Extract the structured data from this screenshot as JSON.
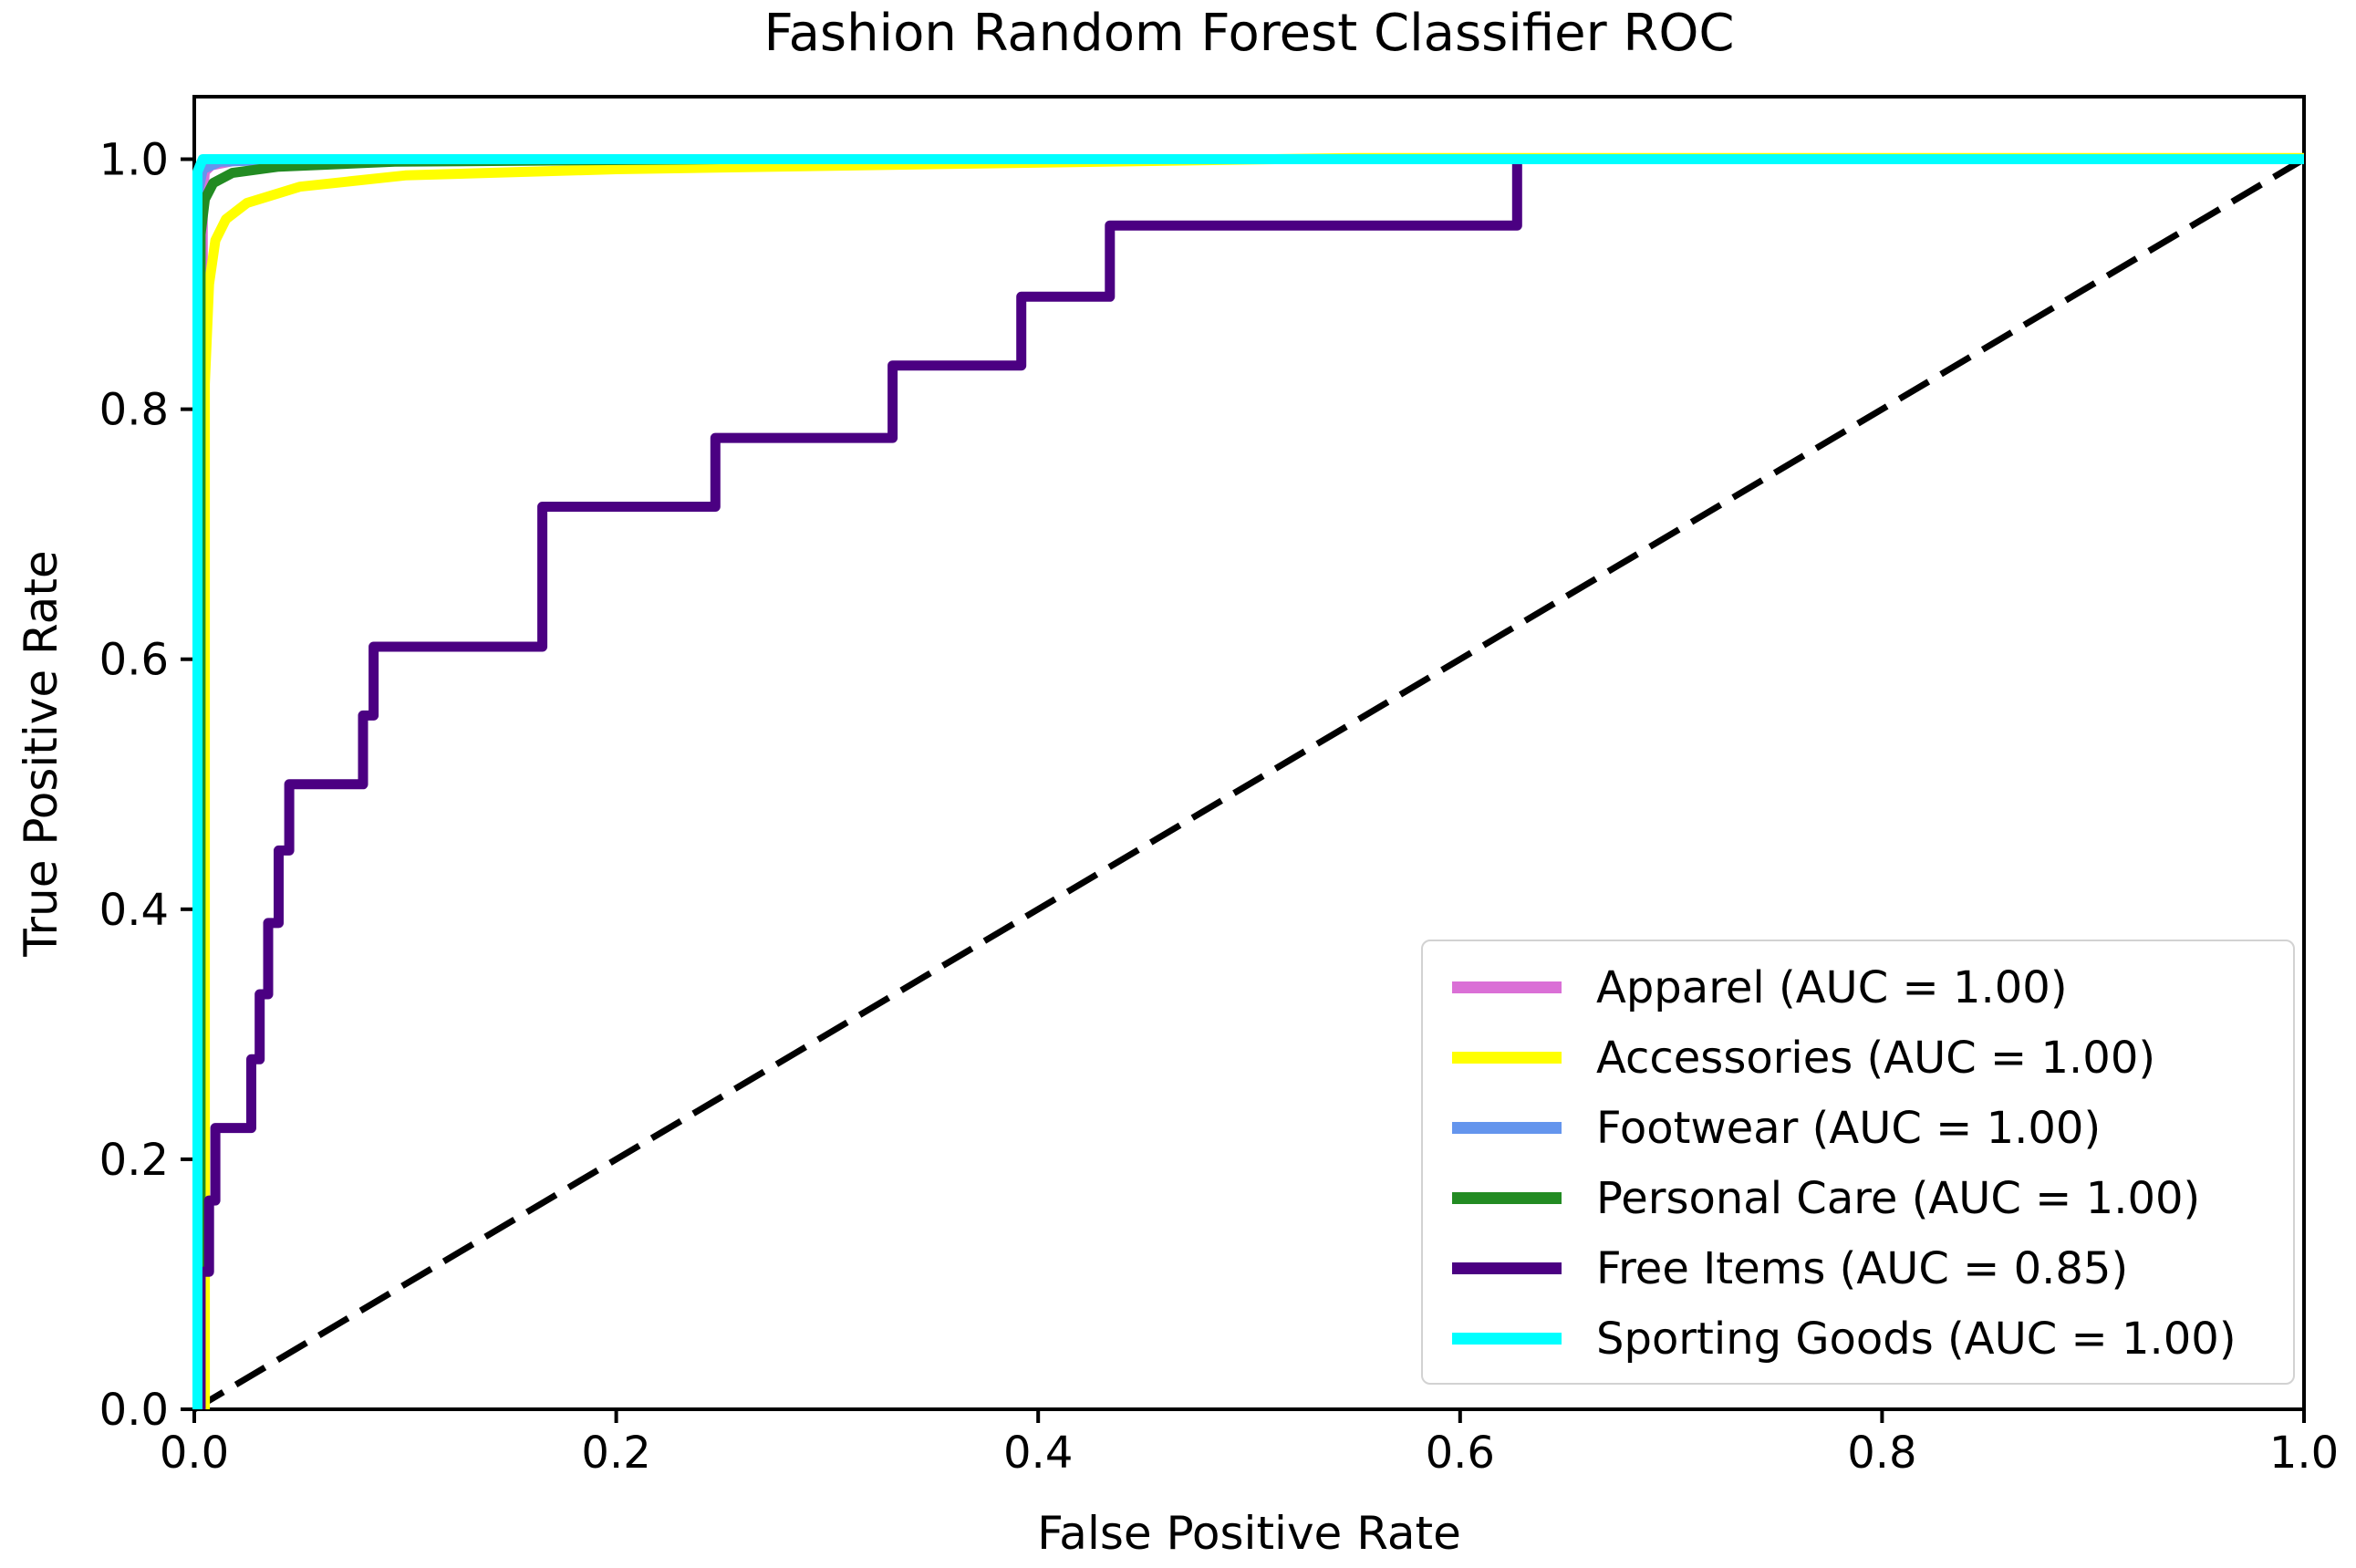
{
  "chart_data": {
    "type": "line",
    "title": "Fashion Random Forest Classifier ROC",
    "xlabel": "False Positive Rate",
    "ylabel": "True Positive Rate",
    "xlim": [
      0.0,
      1.0
    ],
    "ylim": [
      0.0,
      1.05
    ],
    "grid": false,
    "legend_position": "lower right",
    "x_tick_values": [
      0.0,
      0.2,
      0.4,
      0.6,
      0.8,
      1.0
    ],
    "x_tick_labels": [
      "0.0",
      "0.2",
      "0.4",
      "0.6",
      "0.8",
      "1.0"
    ],
    "y_tick_values": [
      0.0,
      0.2,
      0.4,
      0.6,
      0.8,
      1.0
    ],
    "y_tick_labels": [
      "0.0",
      "0.2",
      "0.4",
      "0.6",
      "0.8",
      "1.0"
    ],
    "chance_line": {
      "name": "chance-diagonal",
      "style": "dashed",
      "color": "#000000",
      "points": [
        [
          0.0,
          0.0
        ],
        [
          1.0,
          1.0
        ]
      ]
    },
    "series": [
      {
        "name": "Apparel",
        "auc": "1.00",
        "label": "Apparel (AUC = 1.00)",
        "color": "#DA70D6",
        "points": [
          [
            0.004,
            0.0
          ],
          [
            0.004,
            0.97
          ],
          [
            0.005,
            0.99
          ],
          [
            0.008,
            0.995
          ],
          [
            0.02,
            0.999
          ],
          [
            0.05,
            1.0
          ],
          [
            1.0,
            1.0
          ]
        ]
      },
      {
        "name": "Accessories",
        "auc": "1.00",
        "label": "Accessories (AUC = 1.00)",
        "color": "#FFFF00",
        "points": [
          [
            0.005,
            0.0
          ],
          [
            0.005,
            0.82
          ],
          [
            0.007,
            0.9
          ],
          [
            0.01,
            0.935
          ],
          [
            0.015,
            0.952
          ],
          [
            0.025,
            0.965
          ],
          [
            0.05,
            0.978
          ],
          [
            0.1,
            0.987
          ],
          [
            0.2,
            0.992
          ],
          [
            0.35,
            0.996
          ],
          [
            0.55,
            1.001
          ],
          [
            1.0,
            1.001
          ]
        ]
      },
      {
        "name": "Footwear",
        "auc": "1.00",
        "label": "Footwear (AUC = 1.00)",
        "color": "#6495ED",
        "points": [
          [
            0.002,
            0.0
          ],
          [
            0.002,
            0.975
          ],
          [
            0.004,
            0.992
          ],
          [
            0.012,
            0.998
          ],
          [
            0.05,
            1.0
          ],
          [
            1.0,
            1.0
          ]
        ]
      },
      {
        "name": "Personal Care",
        "auc": "1.00",
        "label": "Personal Care (AUC = 1.00)",
        "color": "#228B22",
        "points": [
          [
            0.003,
            0.0
          ],
          [
            0.003,
            0.94
          ],
          [
            0.005,
            0.968
          ],
          [
            0.009,
            0.981
          ],
          [
            0.018,
            0.989
          ],
          [
            0.04,
            0.994
          ],
          [
            0.095,
            0.998
          ],
          [
            0.25,
            1.0
          ],
          [
            1.0,
            1.0
          ]
        ]
      },
      {
        "name": "Free Items",
        "auc": "0.85",
        "label": "Free Items (AUC = 0.85)",
        "color": "#4B0082",
        "points": [
          [
            0.003,
            0.0
          ],
          [
            0.003,
            0.11
          ],
          [
            0.007,
            0.11
          ],
          [
            0.007,
            0.167
          ],
          [
            0.01,
            0.167
          ],
          [
            0.01,
            0.225
          ],
          [
            0.027,
            0.225
          ],
          [
            0.027,
            0.28
          ],
          [
            0.031,
            0.28
          ],
          [
            0.031,
            0.332
          ],
          [
            0.035,
            0.332
          ],
          [
            0.035,
            0.389
          ],
          [
            0.04,
            0.389
          ],
          [
            0.04,
            0.447
          ],
          [
            0.045,
            0.447
          ],
          [
            0.045,
            0.5
          ],
          [
            0.08,
            0.5
          ],
          [
            0.08,
            0.555
          ],
          [
            0.085,
            0.555
          ],
          [
            0.085,
            0.61
          ],
          [
            0.165,
            0.61
          ],
          [
            0.165,
            0.722
          ],
          [
            0.247,
            0.722
          ],
          [
            0.247,
            0.777
          ],
          [
            0.331,
            0.777
          ],
          [
            0.331,
            0.835
          ],
          [
            0.392,
            0.835
          ],
          [
            0.392,
            0.89
          ],
          [
            0.434,
            0.89
          ],
          [
            0.434,
            0.947
          ],
          [
            0.627,
            0.947
          ],
          [
            0.627,
            1.0
          ],
          [
            1.0,
            1.0
          ]
        ]
      },
      {
        "name": "Sporting Goods",
        "auc": "1.00",
        "label": "Sporting Goods (AUC = 1.00)",
        "color": "#00FFFF",
        "points": [
          [
            0.0015,
            0.0
          ],
          [
            0.0015,
            0.99
          ],
          [
            0.004,
            1.0
          ],
          [
            1.0,
            1.0
          ]
        ]
      }
    ]
  }
}
